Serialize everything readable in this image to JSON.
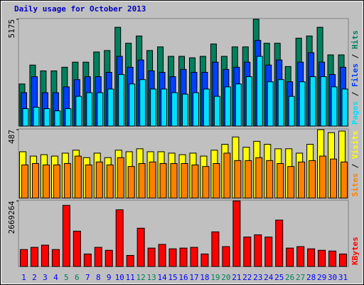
{
  "title": "Daily usage for October 2013",
  "legend_separator": " / ",
  "categories": [
    "1",
    "2",
    "3",
    "4",
    "5",
    "6",
    "7",
    "8",
    "9",
    "10",
    "11",
    "12",
    "13",
    "14",
    "15",
    "16",
    "17",
    "18",
    "19",
    "20",
    "21",
    "22",
    "23",
    "24",
    "25",
    "26",
    "27",
    "28",
    "29",
    "30",
    "31"
  ],
  "category_colors": [
    "#0000ff",
    "#0000ff",
    "#0000ff",
    "#0000ff",
    "#00805c",
    "#00805c",
    "#0000ff",
    "#0000ff",
    "#0000ff",
    "#0000ff",
    "#0000ff",
    "#00805c",
    "#00805c",
    "#0000ff",
    "#0000ff",
    "#0000ff",
    "#0000ff",
    "#0000ff",
    "#00805c",
    "#00805c",
    "#0000ff",
    "#0000ff",
    "#0000ff",
    "#0000ff",
    "#0000ff",
    "#00805c",
    "#00805c",
    "#0000ff",
    "#0000ff",
    "#0000ff",
    "#0000ff"
  ],
  "chart_data": [
    {
      "type": "bar",
      "ylim": [
        0,
        5175
      ],
      "yticks": [
        5175
      ],
      "series": [
        {
          "name": "Hits",
          "color": "#00805c",
          "values": [
            2042,
            2957,
            2675,
            2675,
            2851,
            3098,
            3098,
            3590,
            3661,
            4787,
            4013,
            4365,
            3661,
            3837,
            3379,
            3379,
            3309,
            3379,
            3978,
            3379,
            3837,
            3837,
            5175,
            4013,
            4013,
            2886,
            4259,
            4365,
            4787,
            3450,
            3450
          ]
        },
        {
          "name": "Files",
          "color": "#0040ff",
          "values": [
            1619,
            2394,
            1619,
            1619,
            1901,
            2253,
            2394,
            2394,
            2605,
            3379,
            2851,
            3203,
            2675,
            2605,
            2394,
            2746,
            2605,
            2605,
            3098,
            2746,
            2851,
            3098,
            4154,
            2957,
            3203,
            2147,
            3098,
            3555,
            3098,
            2499,
            2851
          ]
        },
        {
          "name": "Pages",
          "color": "#00e0ff",
          "values": [
            845,
            915,
            845,
            739,
            845,
            1443,
            1619,
            1619,
            1795,
            2499,
            2042,
            2253,
            1795,
            1795,
            1619,
            1549,
            1619,
            1795,
            1443,
            1901,
            2042,
            2394,
            3379,
            2147,
            2253,
            1443,
            2147,
            2394,
            2394,
            1901,
            1795
          ]
        }
      ]
    },
    {
      "type": "bar",
      "ylim": [
        0,
        487
      ],
      "yticks": [
        487
      ],
      "series": [
        {
          "name": "Visits",
          "color": "#ffff00",
          "values": [
            330,
            299,
            309,
            299,
            320,
            341,
            288,
            320,
            288,
            341,
            330,
            351,
            330,
            330,
            320,
            309,
            320,
            299,
            341,
            383,
            435,
            362,
            404,
            383,
            351,
            351,
            320,
            383,
            487,
            466,
            477
          ]
        },
        {
          "name": "Sites",
          "color": "#ff8000",
          "values": [
            236,
            246,
            236,
            236,
            246,
            299,
            236,
            257,
            236,
            288,
            225,
            246,
            257,
            246,
            246,
            246,
            236,
            225,
            246,
            320,
            267,
            267,
            288,
            267,
            246,
            225,
            257,
            267,
            299,
            278,
            257
          ]
        }
      ]
    },
    {
      "type": "bar",
      "ylim": [
        0,
        2669264
      ],
      "yticks": [
        2669264
      ],
      "series": [
        {
          "name": "KBytes",
          "color": "#ff0000",
          "values": [
            689816,
            779792,
            869768,
            689816,
            2489336,
            1439616,
            509864,
            779792,
            659824,
            2309384,
            449880,
            1559584,
            749800,
            899760,
            719808,
            749800,
            779792,
            509864,
            1409624,
            809784,
            2669264,
            1199680,
            1289656,
            1199680,
            1889496,
            749800,
            809784,
            719808,
            659824,
            629832,
            509864
          ]
        }
      ]
    }
  ]
}
